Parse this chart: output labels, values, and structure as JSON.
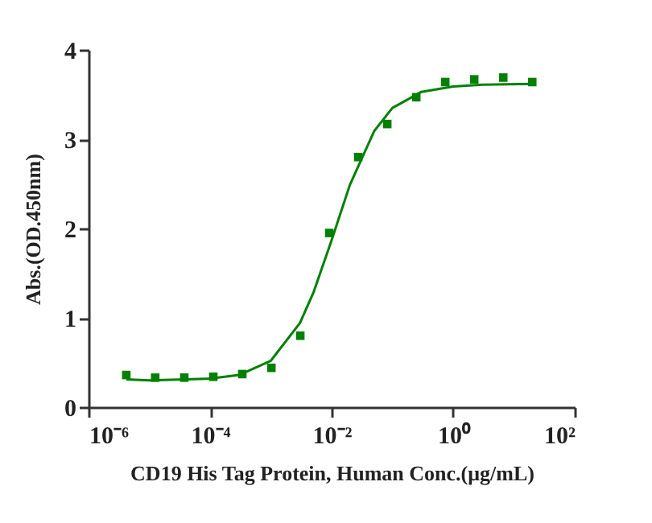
{
  "chart_data": {
    "type": "scatter",
    "xlabel": "CD19 His Tag Protein, Human Conc.(μg/mL)",
    "ylabel": "Abs.(OD.450nm)",
    "log": "x",
    "grid": false,
    "marker": "square",
    "xlim": [
      1e-06,
      100
    ],
    "xticks": [
      {
        "value": 1e-06,
        "label": "10⁻⁶"
      },
      {
        "value": 0.0001,
        "label": "10⁻⁴"
      },
      {
        "value": 0.01,
        "label": "10⁻²"
      },
      {
        "value": 1,
        "label": "10⁰"
      },
      {
        "value": 100,
        "label": "10²"
      }
    ],
    "ylim": [
      0,
      4
    ],
    "yticks": [
      0,
      1,
      2,
      3,
      4
    ],
    "series": [
      {
        "color": "#008000",
        "x": [
          4.18e-06,
          1.25e-05,
          3.76e-05,
          0.000113,
          0.000339,
          0.00102,
          0.00305,
          0.00914,
          0.0274,
          0.0823,
          0.247,
          0.741,
          2.22,
          6.67,
          20
        ],
        "values": [
          0.36,
          0.33,
          0.33,
          0.34,
          0.37,
          0.44,
          0.8,
          1.95,
          2.8,
          3.17,
          3.47,
          3.64,
          3.67,
          3.69,
          3.64
        ]
      },
      {
        "type": "line",
        "color": "#008000",
        "marker": "none",
        "x": [
          4.18e-06,
          1e-05,
          0.0001,
          0.0003,
          0.001,
          0.003,
          0.005,
          0.01,
          0.02,
          0.05,
          0.1,
          0.3,
          1,
          3,
          20
        ],
        "values": [
          0.31,
          0.3,
          0.32,
          0.36,
          0.52,
          0.94,
          1.28,
          1.87,
          2.49,
          3.09,
          3.35,
          3.53,
          3.59,
          3.61,
          3.62
        ]
      }
    ]
  }
}
